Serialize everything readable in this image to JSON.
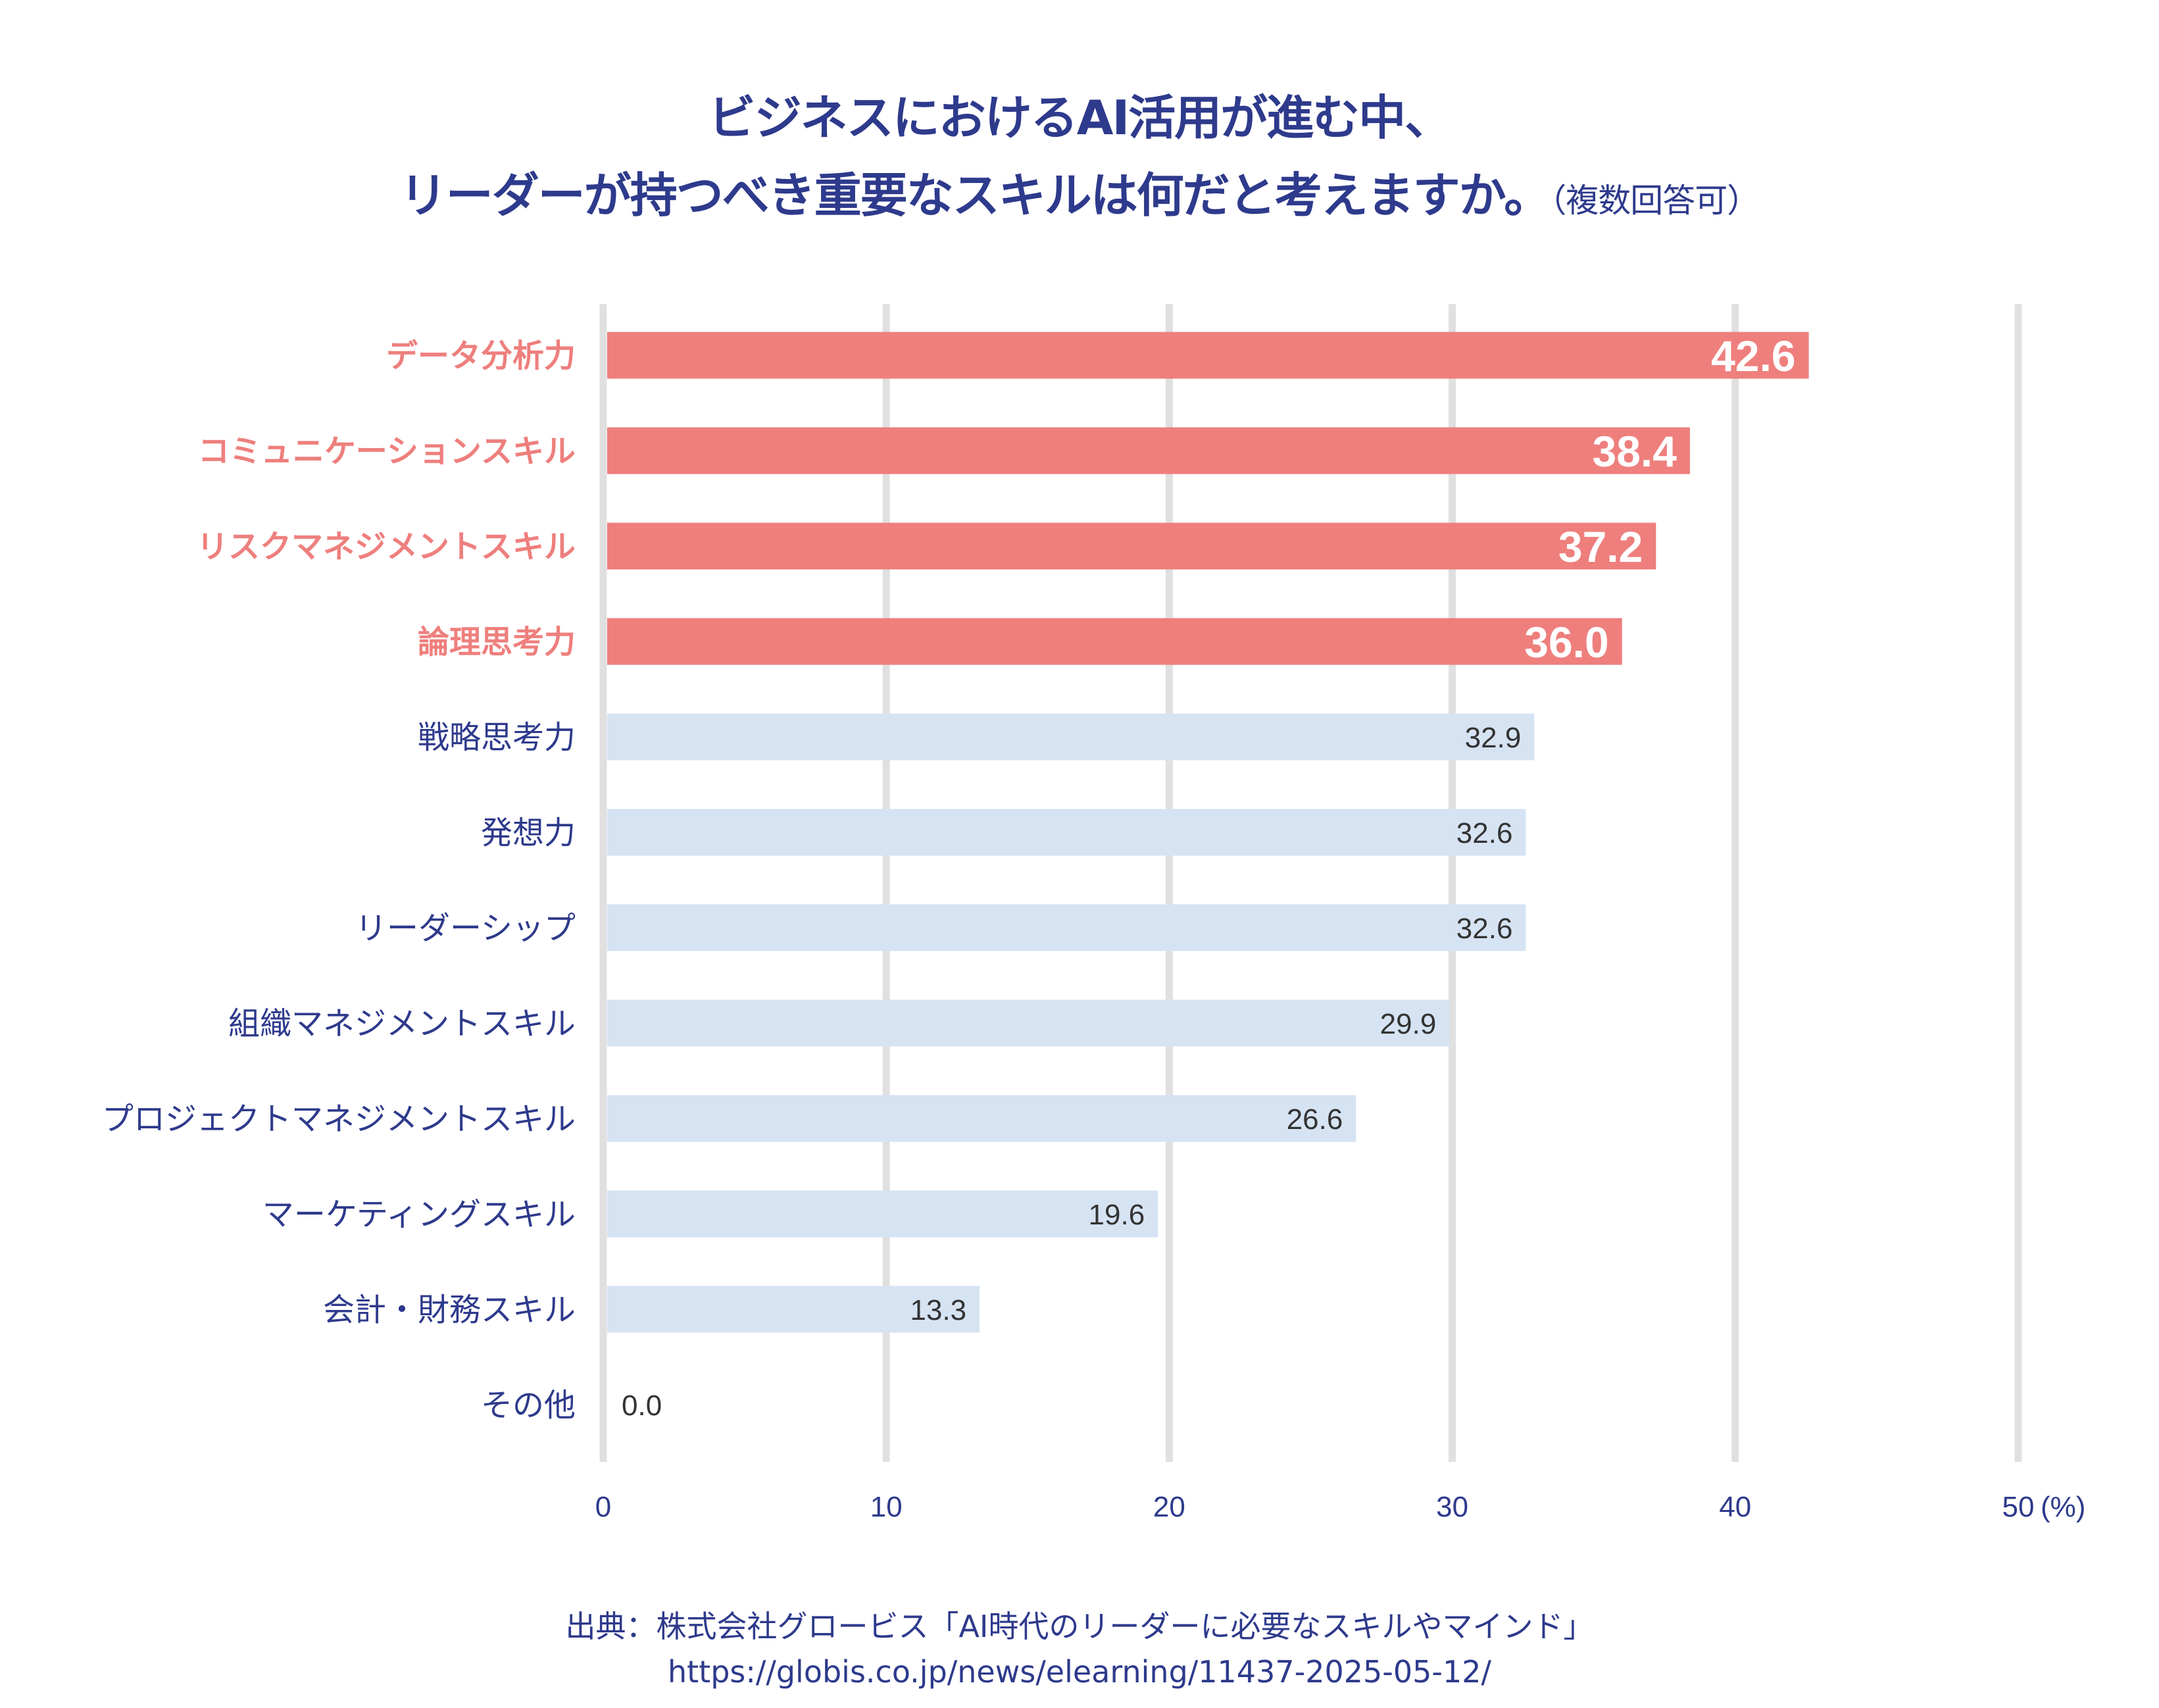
{
  "chart_data": {
    "type": "bar",
    "orientation": "horizontal",
    "title_line1": "ビジネスにおけるAI活用が進む中、",
    "title_line2": "リーダーが持つべき重要なスキルは何だと考えますか。",
    "title_note": "（複数回答可）",
    "categories": [
      "データ分析力",
      "コミュニケーションスキル",
      "リスクマネジメントスキル",
      "論理思考力",
      "戦略思考力",
      "発想力",
      "リーダーシップ",
      "組織マネジメントスキル",
      "プロジェクトマネジメントスキル",
      "マーケティングスキル",
      "会計・財務スキル",
      "その他"
    ],
    "values": [
      42.6,
      38.4,
      37.2,
      36.0,
      32.9,
      32.6,
      32.6,
      29.9,
      26.6,
      19.6,
      13.3,
      0.0
    ],
    "value_labels": [
      "42.6",
      "38.4",
      "37.2",
      "36.0",
      "32.9",
      "32.6",
      "32.6",
      "29.9",
      "26.6",
      "19.6",
      "13.3",
      "0.0"
    ],
    "highlighted": [
      true,
      true,
      true,
      true,
      false,
      false,
      false,
      false,
      false,
      false,
      false,
      false
    ],
    "xlim": [
      0,
      50
    ],
    "xticks": [
      "0",
      "10",
      "20",
      "30",
      "40",
      "50"
    ],
    "xunit": "(%)",
    "xlabel": "",
    "ylabel": "",
    "grid": true,
    "colors": {
      "highlight": "#ee7f7d",
      "normal": "#d6e3f3",
      "highlight_text": "#ee7f7d",
      "normal_text": "#2e3a8c",
      "grid": "#e0e0e0",
      "value_dark": "#333333",
      "value_light": "#ffffff"
    }
  },
  "footer": {
    "source": "出典：株式会社グロービス「AI時代のリーダーに必要なスキルやマインド」",
    "url": "https://globis.co.jp/news/elearning/11437-2025-05-12/"
  }
}
